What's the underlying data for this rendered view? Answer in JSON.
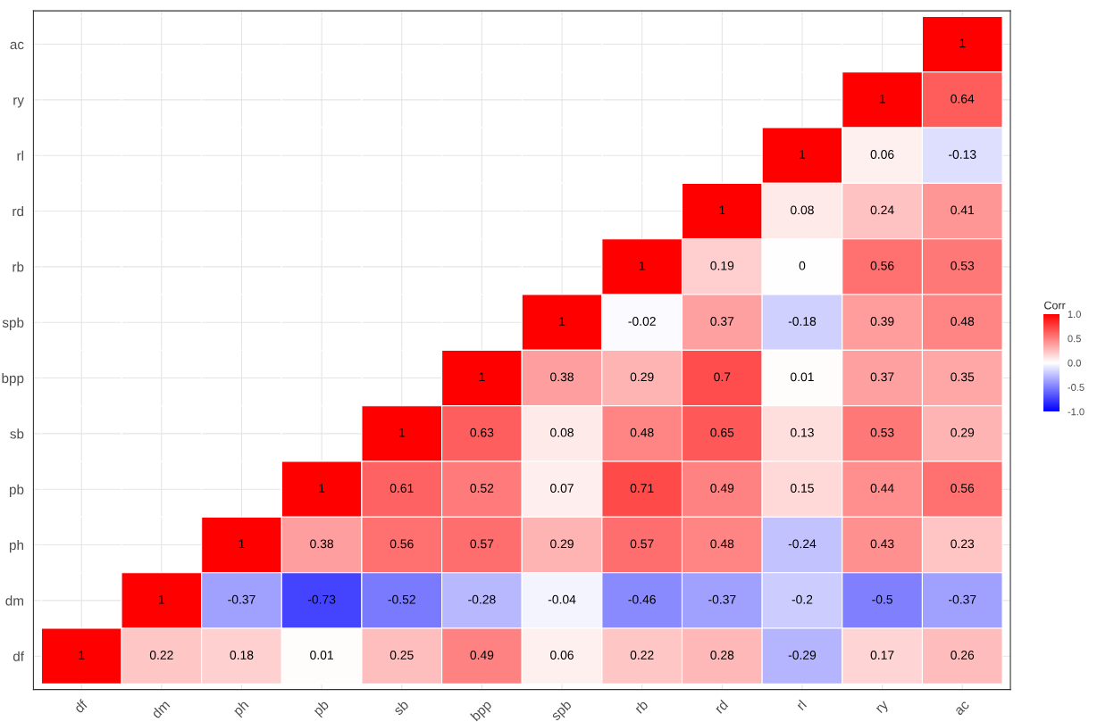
{
  "chart_data": {
    "type": "heatmap",
    "clabel": "Corr",
    "categories": [
      "df",
      "dm",
      "ph",
      "pb",
      "sb",
      "bpp",
      "spb",
      "rb",
      "rd",
      "rl",
      "ry",
      "ac"
    ],
    "y_categories": [
      "ac",
      "ry",
      "rl",
      "rd",
      "rb",
      "spb",
      "bpp",
      "sb",
      "pb",
      "ph",
      "dm",
      "df"
    ],
    "cells": [
      [
        null,
        null,
        null,
        null,
        null,
        null,
        null,
        null,
        null,
        null,
        null,
        1
      ],
      [
        null,
        null,
        null,
        null,
        null,
        null,
        null,
        null,
        null,
        null,
        1,
        0.64
      ],
      [
        null,
        null,
        null,
        null,
        null,
        null,
        null,
        null,
        null,
        1,
        0.06,
        -0.13
      ],
      [
        null,
        null,
        null,
        null,
        null,
        null,
        null,
        null,
        1,
        0.08,
        0.24,
        0.41
      ],
      [
        null,
        null,
        null,
        null,
        null,
        null,
        null,
        1,
        0.19,
        0,
        0.56,
        0.53
      ],
      [
        null,
        null,
        null,
        null,
        null,
        null,
        1,
        -0.02,
        0.37,
        -0.18,
        0.39,
        0.48
      ],
      [
        null,
        null,
        null,
        null,
        null,
        1,
        0.38,
        0.29,
        0.7,
        0.01,
        0.37,
        0.35
      ],
      [
        null,
        null,
        null,
        null,
        1,
        0.63,
        0.08,
        0.48,
        0.65,
        0.13,
        0.53,
        0.29
      ],
      [
        null,
        null,
        null,
        1,
        0.61,
        0.52,
        0.07,
        0.71,
        0.49,
        0.15,
        0.44,
        0.56
      ],
      [
        null,
        null,
        1,
        0.38,
        0.56,
        0.57,
        0.29,
        0.57,
        0.48,
        -0.24,
        0.43,
        0.23
      ],
      [
        null,
        1,
        -0.37,
        -0.73,
        -0.52,
        -0.28,
        -0.04,
        -0.46,
        -0.37,
        -0.2,
        -0.5,
        -0.37
      ],
      [
        1,
        0.22,
        0.18,
        0.01,
        0.25,
        0.49,
        0.06,
        0.22,
        0.28,
        -0.29,
        0.17,
        0.26
      ]
    ],
    "clim": [
      -1,
      1
    ],
    "cticks": [
      {
        "value": -1,
        "label": "-1.0"
      },
      {
        "value": -0.5,
        "label": "-0.5"
      },
      {
        "value": 0,
        "label": "0.0"
      },
      {
        "value": 0.5,
        "label": "0.5"
      },
      {
        "value": 1,
        "label": "1.0"
      }
    ],
    "data_labels": true,
    "grid": true
  }
}
